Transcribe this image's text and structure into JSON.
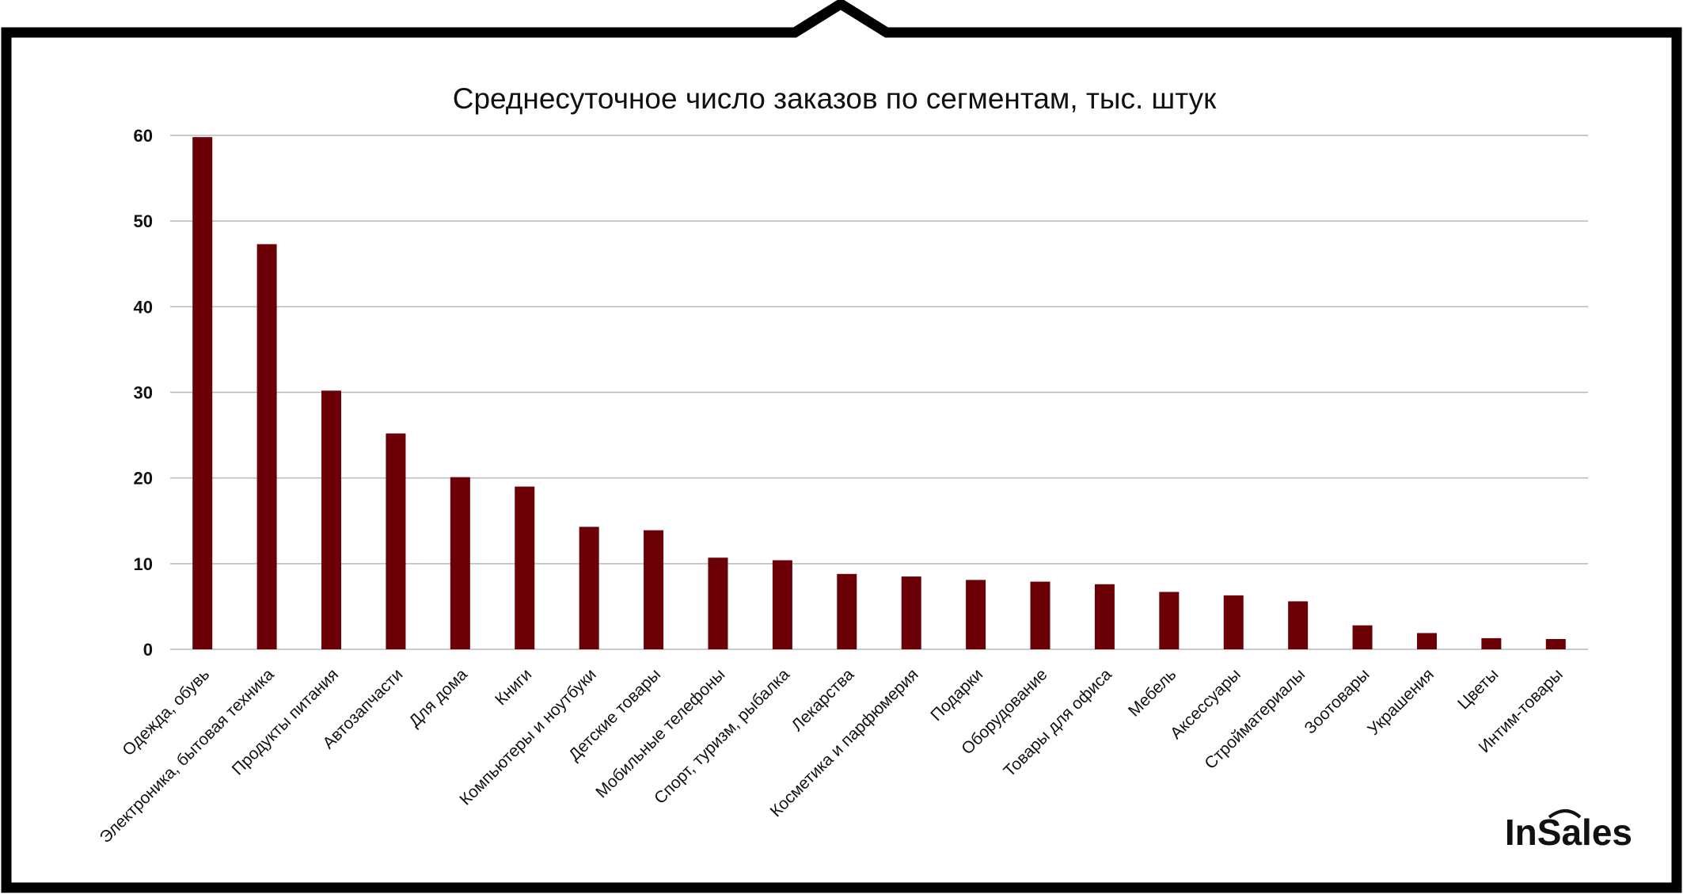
{
  "brand": {
    "logo_text": "InSales"
  },
  "colors": {
    "bar": "#6b0007",
    "frame": "#000000",
    "grid": "#b8b8b8",
    "text": "#111111"
  },
  "chart_data": {
    "type": "bar",
    "title": "Среднесуточное число заказов по сегментам, тыс. штук",
    "xlabel": "",
    "ylabel": "",
    "ylim": [
      0,
      60
    ],
    "yticks": [
      "0",
      "10",
      "20",
      "30",
      "40",
      "50",
      "60"
    ],
    "grid": true,
    "legend": "none",
    "categories": [
      "Одежда, обувь",
      "Электроника, бытовая техника",
      "Продукты питания",
      "Автозапчасти",
      "Для дома",
      "Книги",
      "Компьютеры и ноутбуки",
      "Детские товары",
      "Мобильные телефоны",
      "Спорт, туризм, рыбалка",
      "Лекарства",
      "Косметика и парфюмерия",
      "Подарки",
      "Оборудование",
      "Товары для офиса",
      "Мебель",
      "Аксессуары",
      "Стройматериалы",
      "Зоотовары",
      "Украшения",
      "Цветы",
      "Интим-товары"
    ],
    "values": [
      59.8,
      47.3,
      30.2,
      25.2,
      20.1,
      19.0,
      14.3,
      13.9,
      10.7,
      10.4,
      8.8,
      8.5,
      8.1,
      7.9,
      7.6,
      6.7,
      6.3,
      5.6,
      2.8,
      1.9,
      1.3,
      1.2
    ]
  }
}
